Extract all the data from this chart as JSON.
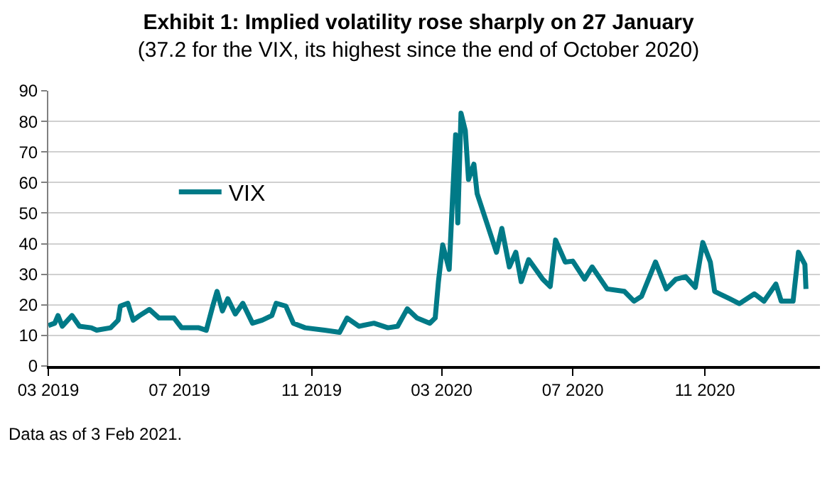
{
  "chart_data": {
    "type": "line",
    "title": "Exhibit 1: Implied volatility rose sharply on 27 January",
    "subtitle": "(37.2 for the VIX, its highest since the end of October 2020)",
    "annotations": [
      "Data as of 3 Feb 2021."
    ],
    "x": [
      "2019-03-01",
      "2019-03-07",
      "2019-03-10",
      "2019-03-14",
      "2019-03-23",
      "2019-03-30",
      "2019-04-10",
      "2019-04-15",
      "2019-04-28",
      "2019-05-05",
      "2019-05-07",
      "2019-05-14",
      "2019-05-19",
      "2019-05-25",
      "2019-06-03",
      "2019-06-12",
      "2019-06-26",
      "2019-07-03",
      "2019-07-19",
      "2019-07-26",
      "2019-08-01",
      "2019-08-05",
      "2019-08-10",
      "2019-08-15",
      "2019-08-22",
      "2019-08-29",
      "2019-09-07",
      "2019-09-16",
      "2019-09-25",
      "2019-09-29",
      "2019-10-08",
      "2019-10-15",
      "2019-10-26",
      "2019-11-13",
      "2019-11-27",
      "2019-12-04",
      "2019-12-15",
      "2019-12-29",
      "2020-01-11",
      "2020-01-20",
      "2020-01-29",
      "2020-02-07",
      "2020-02-19",
      "2020-02-24",
      "2020-02-27",
      "2020-03-02",
      "2020-03-08",
      "2020-03-11",
      "2020-03-14",
      "2020-03-16",
      "2020-03-19",
      "2020-03-23",
      "2020-03-26",
      "2020-03-31",
      "2020-04-03",
      "2020-04-12",
      "2020-04-21",
      "2020-04-26",
      "2020-05-03",
      "2020-05-09",
      "2020-05-14",
      "2020-05-21",
      "2020-06-03",
      "2020-06-10",
      "2020-06-15",
      "2020-06-24",
      "2020-07-01",
      "2020-07-12",
      "2020-07-19",
      "2020-08-02",
      "2020-08-18",
      "2020-08-27",
      "2020-09-03",
      "2020-09-16",
      "2020-09-26",
      "2020-10-05",
      "2020-10-14",
      "2020-10-23",
      "2020-10-30",
      "2020-11-06",
      "2020-11-10",
      "2020-11-24",
      "2020-12-03",
      "2020-12-17",
      "2020-12-26",
      "2021-01-06",
      "2021-01-11",
      "2021-01-22",
      "2021-01-27",
      "2021-02-02",
      "2021-02-03"
    ],
    "series": [
      {
        "name": "VIX",
        "color": "#007a87",
        "values": [
          13.2,
          14,
          16.5,
          13,
          16.5,
          13,
          12.5,
          11.7,
          12.5,
          15,
          19.6,
          20.5,
          15,
          16.5,
          18.5,
          15.7,
          15.7,
          12.5,
          12.5,
          11.7,
          19.6,
          24.4,
          18,
          22,
          17,
          20.5,
          14,
          15,
          16.5,
          20.5,
          19.6,
          14,
          12.5,
          11.7,
          11,
          15.7,
          13,
          14,
          12.5,
          13,
          18.7,
          15.7,
          14,
          15.7,
          27.6,
          39.6,
          31.6,
          54,
          75.6,
          46.8,
          82.7,
          77,
          61,
          66,
          56.4,
          46.8,
          37.2,
          45,
          32.4,
          37.2,
          27.6,
          34.8,
          28.4,
          26,
          41.2,
          34,
          34.3,
          28.4,
          32.4,
          25.2,
          24.4,
          21.2,
          22.8,
          34,
          25.2,
          28.4,
          29.2,
          25.7,
          40.4,
          34,
          24.4,
          22,
          20.4,
          23.6,
          21.2,
          26.8,
          21.2,
          21.2,
          37.2,
          33.2,
          25.2
        ]
      }
    ],
    "xlim": [
      "2019-03-01",
      "2021-02-16"
    ],
    "xticks": [
      {
        "value": "2019-03-01",
        "label": "03 2019"
      },
      {
        "value": "2019-07-01",
        "label": "07 2019"
      },
      {
        "value": "2019-11-01",
        "label": "11 2019"
      },
      {
        "value": "2020-03-01",
        "label": "03 2020"
      },
      {
        "value": "2020-07-01",
        "label": "07 2020"
      },
      {
        "value": "2020-11-01",
        "label": "11 2020"
      }
    ],
    "ylim": [
      0,
      90
    ],
    "yticks": [
      0,
      10,
      20,
      30,
      40,
      50,
      60,
      70,
      80,
      90
    ],
    "grid": "y",
    "legend": "top left",
    "line_style": "solid",
    "marker": "none"
  }
}
